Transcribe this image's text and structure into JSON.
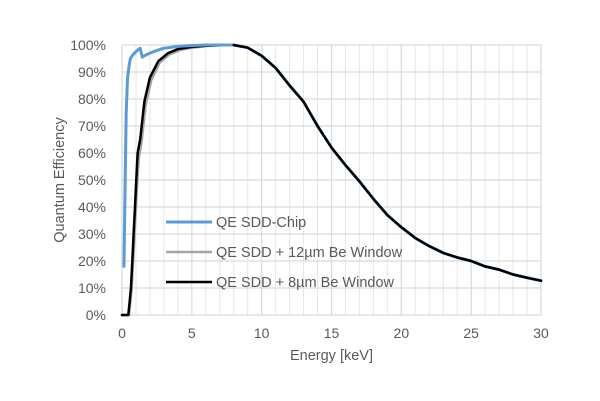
{
  "chart_data": {
    "type": "line",
    "title": "",
    "xlabel": "Energy [keV]",
    "ylabel": "Quantum Efficiency",
    "xlim": [
      0,
      30
    ],
    "ylim": [
      0,
      100
    ],
    "x_ticks": [
      0,
      5,
      10,
      15,
      20,
      25,
      30
    ],
    "x_tick_labels": [
      "0",
      "5",
      "10",
      "15",
      "20",
      "25",
      "30"
    ],
    "y_ticks": [
      0,
      10,
      20,
      30,
      40,
      50,
      60,
      70,
      80,
      90,
      100
    ],
    "y_tick_labels": [
      "0%",
      "10%",
      "20%",
      "30%",
      "40%",
      "50%",
      "60%",
      "70%",
      "80%",
      "90%",
      "100%"
    ],
    "grid": {
      "major": true,
      "minor_x_step": 1
    },
    "legend_position": "center-left",
    "colors": {
      "grid": "#d9d9d9",
      "text": "#595959",
      "axis": "#bfbfbf"
    },
    "series": [
      {
        "name": "QE SDD-Chip",
        "color": "#5b9bd5",
        "points": [
          [
            0.14,
            18
          ],
          [
            0.2,
            40
          ],
          [
            0.3,
            75
          ],
          [
            0.4,
            88
          ],
          [
            0.5,
            92
          ],
          [
            0.6,
            95
          ],
          [
            0.8,
            96.5
          ],
          [
            1.0,
            97.5
          ],
          [
            1.2,
            98.5
          ],
          [
            1.3,
            98.8
          ],
          [
            1.45,
            95.5
          ],
          [
            1.6,
            96
          ],
          [
            1.8,
            96.5
          ],
          [
            2,
            97
          ],
          [
            2.5,
            98
          ],
          [
            3,
            98.8
          ],
          [
            4,
            99.5
          ],
          [
            5,
            99.8
          ],
          [
            6,
            100
          ],
          [
            7,
            100
          ],
          [
            8,
            100
          ],
          [
            9,
            99
          ],
          [
            10,
            96
          ],
          [
            11,
            91.5
          ],
          [
            12,
            85
          ],
          [
            13,
            79
          ],
          [
            14,
            70
          ],
          [
            15,
            62
          ],
          [
            16,
            55.5
          ],
          [
            17,
            49.5
          ],
          [
            18,
            43
          ],
          [
            19,
            37
          ],
          [
            20,
            32.5
          ],
          [
            21,
            28.5
          ],
          [
            22,
            25.5
          ],
          [
            23,
            23
          ],
          [
            24,
            21.3
          ],
          [
            25,
            20
          ],
          [
            26,
            18
          ],
          [
            27,
            16.8
          ],
          [
            28,
            15
          ],
          [
            29,
            13.8
          ],
          [
            30,
            12.7
          ]
        ]
      },
      {
        "name": "QE SDD + 12µm Be Window",
        "color": "#a5a5a5",
        "points": [
          [
            0,
            0
          ],
          [
            0.5,
            0
          ],
          [
            0.6,
            5
          ],
          [
            0.7,
            10
          ],
          [
            0.8,
            20
          ],
          [
            0.9,
            30
          ],
          [
            1.0,
            40
          ],
          [
            1.1,
            50
          ],
          [
            1.2,
            58
          ],
          [
            1.4,
            64
          ],
          [
            1.7,
            78
          ],
          [
            2.1,
            87
          ],
          [
            2.7,
            93.5
          ],
          [
            3.4,
            96.5
          ],
          [
            4.2,
            98.2
          ],
          [
            5,
            99
          ],
          [
            6,
            99.6
          ],
          [
            7,
            99.9
          ],
          [
            8,
            100
          ],
          [
            9,
            99
          ],
          [
            10,
            96
          ],
          [
            11,
            91.5
          ],
          [
            12,
            85
          ],
          [
            13,
            79
          ],
          [
            14,
            70
          ],
          [
            15,
            62
          ],
          [
            16,
            55.5
          ],
          [
            17,
            49.5
          ],
          [
            18,
            43
          ],
          [
            19,
            37
          ],
          [
            20,
            32.5
          ],
          [
            21,
            28.5
          ],
          [
            22,
            25.5
          ],
          [
            23,
            23
          ],
          [
            24,
            21.3
          ],
          [
            25,
            20
          ],
          [
            26,
            18
          ],
          [
            27,
            16.8
          ],
          [
            28,
            15
          ],
          [
            29,
            13.8
          ],
          [
            30,
            12.7
          ]
        ]
      },
      {
        "name": "QE SDD + 8µm Be Window",
        "color": "#000000",
        "points": [
          [
            0,
            0
          ],
          [
            0.45,
            0
          ],
          [
            0.55,
            5
          ],
          [
            0.64,
            10
          ],
          [
            0.74,
            20
          ],
          [
            0.83,
            30
          ],
          [
            0.93,
            40
          ],
          [
            1.02,
            50
          ],
          [
            1.12,
            60
          ],
          [
            1.3,
            65
          ],
          [
            1.6,
            79
          ],
          [
            2,
            88
          ],
          [
            2.6,
            94
          ],
          [
            3.3,
            97
          ],
          [
            4,
            98.5
          ],
          [
            5,
            99.3
          ],
          [
            6,
            99.7
          ],
          [
            7,
            99.9
          ],
          [
            8,
            100
          ],
          [
            9,
            99
          ],
          [
            10,
            96
          ],
          [
            11,
            91.5
          ],
          [
            12,
            85
          ],
          [
            13,
            79
          ],
          [
            14,
            70
          ],
          [
            15,
            62
          ],
          [
            16,
            55.5
          ],
          [
            17,
            49.5
          ],
          [
            18,
            43
          ],
          [
            19,
            37
          ],
          [
            20,
            32.5
          ],
          [
            21,
            28.5
          ],
          [
            22,
            25.5
          ],
          [
            23,
            23
          ],
          [
            24,
            21.3
          ],
          [
            25,
            20
          ],
          [
            26,
            18
          ],
          [
            27,
            16.8
          ],
          [
            28,
            15
          ],
          [
            29,
            13.8
          ],
          [
            30,
            12.7
          ]
        ]
      }
    ]
  }
}
